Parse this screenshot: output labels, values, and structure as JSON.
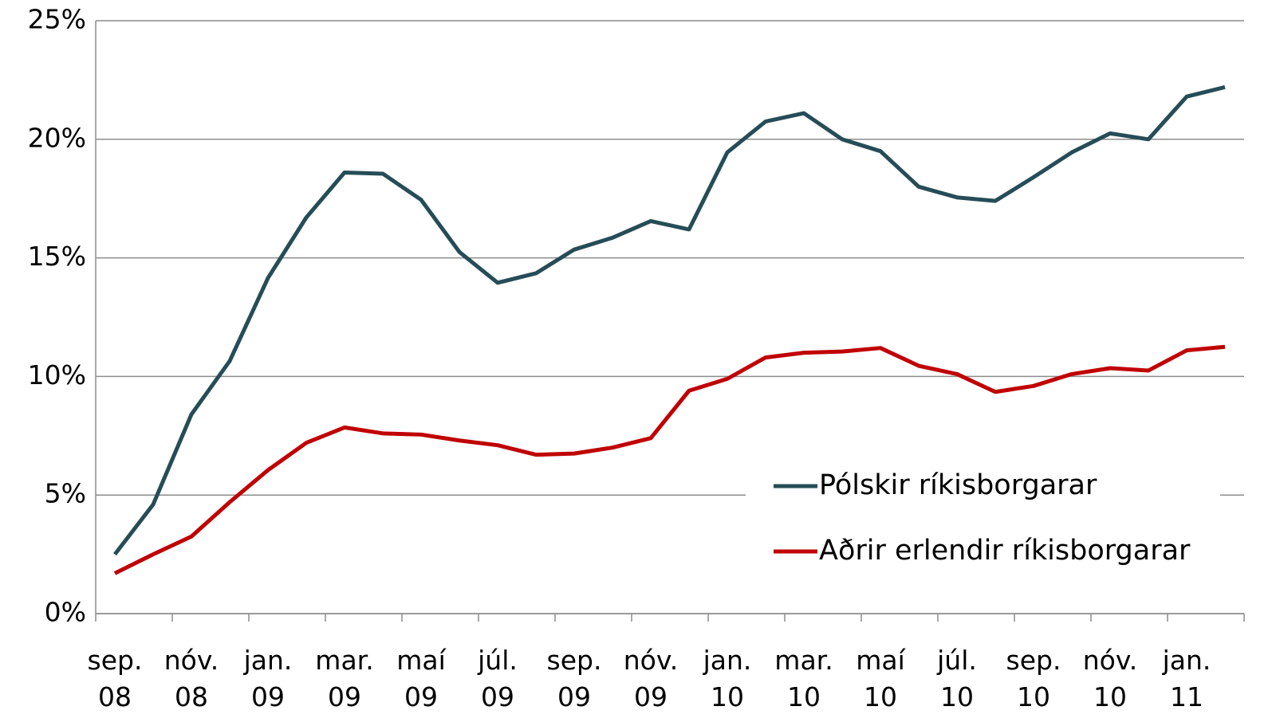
{
  "chart_data": {
    "type": "line",
    "categories": [
      "sep. 08",
      null,
      "nóv. 08",
      null,
      "jan. 09",
      null,
      "mar. 09",
      null,
      "maí 09",
      null,
      "júl. 09",
      null,
      "sep. 09",
      null,
      "nóv. 09",
      null,
      "jan. 10",
      null,
      "mar. 10",
      null,
      "maí 10",
      null,
      "júl. 10",
      null,
      "sep. 10",
      null,
      "nóv. 10",
      null,
      "jan. 11",
      null
    ],
    "series": [
      {
        "name": "Pólskir ríkisborgarar",
        "color": "#264d57",
        "values": [
          2.5,
          4.6,
          8.4,
          10.65,
          14.15,
          16.7,
          18.6,
          18.55,
          17.45,
          15.25,
          13.95,
          14.35,
          15.35,
          15.85,
          16.55,
          16.2,
          19.45,
          20.75,
          21.1,
          20.0,
          19.5,
          18.0,
          17.55,
          17.4,
          18.4,
          19.45,
          20.25,
          20.0,
          21.8,
          22.2
        ]
      },
      {
        "name": "Aðrir erlendir ríkisborgarar",
        "color": "#c00000",
        "values": [
          1.7,
          2.5,
          3.25,
          4.7,
          6.05,
          7.2,
          7.85,
          7.6,
          7.55,
          7.3,
          7.1,
          6.7,
          6.75,
          7.0,
          7.4,
          9.4,
          9.9,
          10.8,
          11.0,
          11.05,
          11.2,
          10.45,
          10.1,
          9.35,
          9.6,
          10.1,
          10.35,
          10.25,
          11.1,
          11.25
        ]
      }
    ],
    "ylim": [
      0,
      25
    ],
    "yticks": [
      {
        "value": 0,
        "label": "0%"
      },
      {
        "value": 5,
        "label": "5%"
      },
      {
        "value": 10,
        "label": "10%"
      },
      {
        "value": 15,
        "label": "15%"
      },
      {
        "value": 20,
        "label": "20%"
      },
      {
        "value": 25,
        "label": "25%"
      }
    ],
    "grid": true,
    "legend": "lower right"
  }
}
